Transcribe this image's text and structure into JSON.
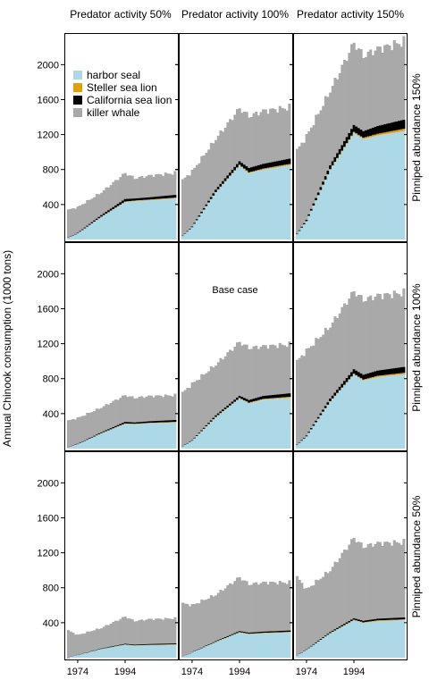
{
  "figure": {
    "ylabel": "Annual Chinook consumption (1000 tons)",
    "col_headers": [
      "Predator activity 50%",
      "Predator activity 100%",
      "Predator activity 150%"
    ],
    "row_headers": [
      "Pinniped abundance 150%",
      "Pinniped abundance 100%",
      "Pinniped abundance 50%"
    ],
    "annotation": "Base case",
    "legend": [
      {
        "label": "harbor seal",
        "color": "#add8e6"
      },
      {
        "label": "Steller sea lion",
        "color": "#e69f00"
      },
      {
        "label": "California sea lion",
        "color": "#000000"
      },
      {
        "label": "killer whale",
        "color": "#a9a9a9"
      }
    ]
  },
  "chart_data": {
    "type": "area",
    "stacked": true,
    "x_start": 1970,
    "x_end": 2015,
    "x_ticks": [
      "1974",
      "1994"
    ],
    "y_ticks": [
      "400",
      "800",
      "1200",
      "1600",
      "2000"
    ],
    "ylim": [
      0,
      2300
    ],
    "series_order": [
      "harbor seal",
      "Steller sea lion",
      "California sea lion",
      "killer whale"
    ],
    "annotation_panel": "row 2, col 2",
    "panels": [
      {
        "row": 1,
        "col": 1,
        "keys": [
          1970,
          1974,
          1984,
          1994,
          1998,
          2004,
          2015
        ],
        "harbor": [
          20,
          70,
          260,
          430,
          440,
          450,
          470
        ],
        "steller": [
          0,
          0,
          1,
          3,
          5,
          6,
          8
        ],
        "california": [
          3,
          6,
          18,
          30,
          24,
          26,
          32
        ],
        "total": [
          340,
          370,
          540,
          760,
          700,
          730,
          760
        ]
      },
      {
        "row": 1,
        "col": 2,
        "keys": [
          1970,
          1974,
          1984,
          1994,
          1998,
          2004,
          2015
        ],
        "harbor": [
          40,
          140,
          540,
          850,
          760,
          800,
          850
        ],
        "steller": [
          0,
          0,
          2,
          5,
          8,
          10,
          14
        ],
        "california": [
          4,
          8,
          28,
          40,
          50,
          55,
          60
        ],
        "total": [
          680,
          780,
          1150,
          1500,
          1410,
          1470,
          1510
        ]
      },
      {
        "row": 1,
        "col": 3,
        "keys": [
          1970,
          1974,
          1984,
          1994,
          1998,
          2004,
          2015
        ],
        "harbor": [
          60,
          210,
          800,
          1220,
          1150,
          1190,
          1240
        ],
        "steller": [
          0,
          0,
          4,
          10,
          14,
          18,
          25
        ],
        "california": [
          6,
          15,
          45,
          80,
          75,
          90,
          105
        ],
        "total": [
          1020,
          1180,
          1700,
          2250,
          2100,
          2180,
          2260
        ]
      },
      {
        "row": 2,
        "col": 1,
        "keys": [
          1970,
          1974,
          1984,
          1994,
          1998,
          2004,
          2015
        ],
        "harbor": [
          15,
          50,
          175,
          285,
          280,
          290,
          300
        ],
        "steller": [
          0,
          0,
          1,
          2,
          3,
          4,
          5
        ],
        "california": [
          2,
          4,
          10,
          18,
          16,
          18,
          22
        ],
        "total": [
          320,
          350,
          470,
          610,
          580,
          600,
          610
        ]
      },
      {
        "row": 2,
        "col": 2,
        "keys": [
          1970,
          1974,
          1984,
          1994,
          1998,
          2004,
          2015
        ],
        "harbor": [
          25,
          90,
          360,
          575,
          520,
          560,
          580
        ],
        "steller": [
          0,
          0,
          2,
          4,
          6,
          8,
          12
        ],
        "california": [
          3,
          6,
          18,
          25,
          30,
          34,
          40
        ],
        "total": [
          640,
          740,
          960,
          1220,
          1150,
          1170,
          1190
        ]
      },
      {
        "row": 2,
        "col": 3,
        "keys": [
          1970,
          1974,
          1984,
          1994,
          1998,
          2004,
          2015
        ],
        "harbor": [
          40,
          140,
          540,
          850,
          780,
          820,
          850
        ],
        "steller": [
          0,
          0,
          2,
          6,
          9,
          12,
          16
        ],
        "california": [
          4,
          10,
          30,
          52,
          55,
          60,
          68
        ],
        "total": [
          1000,
          1120,
          1400,
          1800,
          1700,
          1750,
          1780
        ]
      },
      {
        "row": 3,
        "col": 1,
        "keys": [
          1970,
          1974,
          1984,
          1994,
          1998,
          2004,
          2015
        ],
        "harbor": [
          8,
          30,
          100,
          150,
          140,
          145,
          150
        ],
        "steller": [
          0,
          0,
          0,
          1,
          1,
          2,
          3
        ],
        "california": [
          1,
          2,
          5,
          8,
          8,
          9,
          10
        ],
        "total": [
          310,
          260,
          340,
          470,
          420,
          440,
          450
        ]
      },
      {
        "row": 3,
        "col": 2,
        "keys": [
          1970,
          1974,
          1984,
          1994,
          1998,
          2004,
          2015
        ],
        "harbor": [
          15,
          60,
          180,
          290,
          270,
          280,
          290
        ],
        "steller": [
          0,
          0,
          1,
          2,
          3,
          4,
          5
        ],
        "california": [
          1,
          3,
          8,
          12,
          13,
          14,
          16
        ],
        "total": [
          620,
          600,
          720,
          920,
          840,
          860,
          860
        ]
      },
      {
        "row": 3,
        "col": 3,
        "keys": [
          1970,
          1974,
          1984,
          1994,
          1998,
          2004,
          2015
        ],
        "harbor": [
          25,
          90,
          280,
          430,
          400,
          420,
          430
        ],
        "steller": [
          0,
          0,
          1,
          3,
          4,
          6,
          8
        ],
        "california": [
          2,
          5,
          12,
          18,
          18,
          20,
          22
        ],
        "total": [
          920,
          780,
          1000,
          1370,
          1270,
          1310,
          1320
        ]
      }
    ]
  }
}
